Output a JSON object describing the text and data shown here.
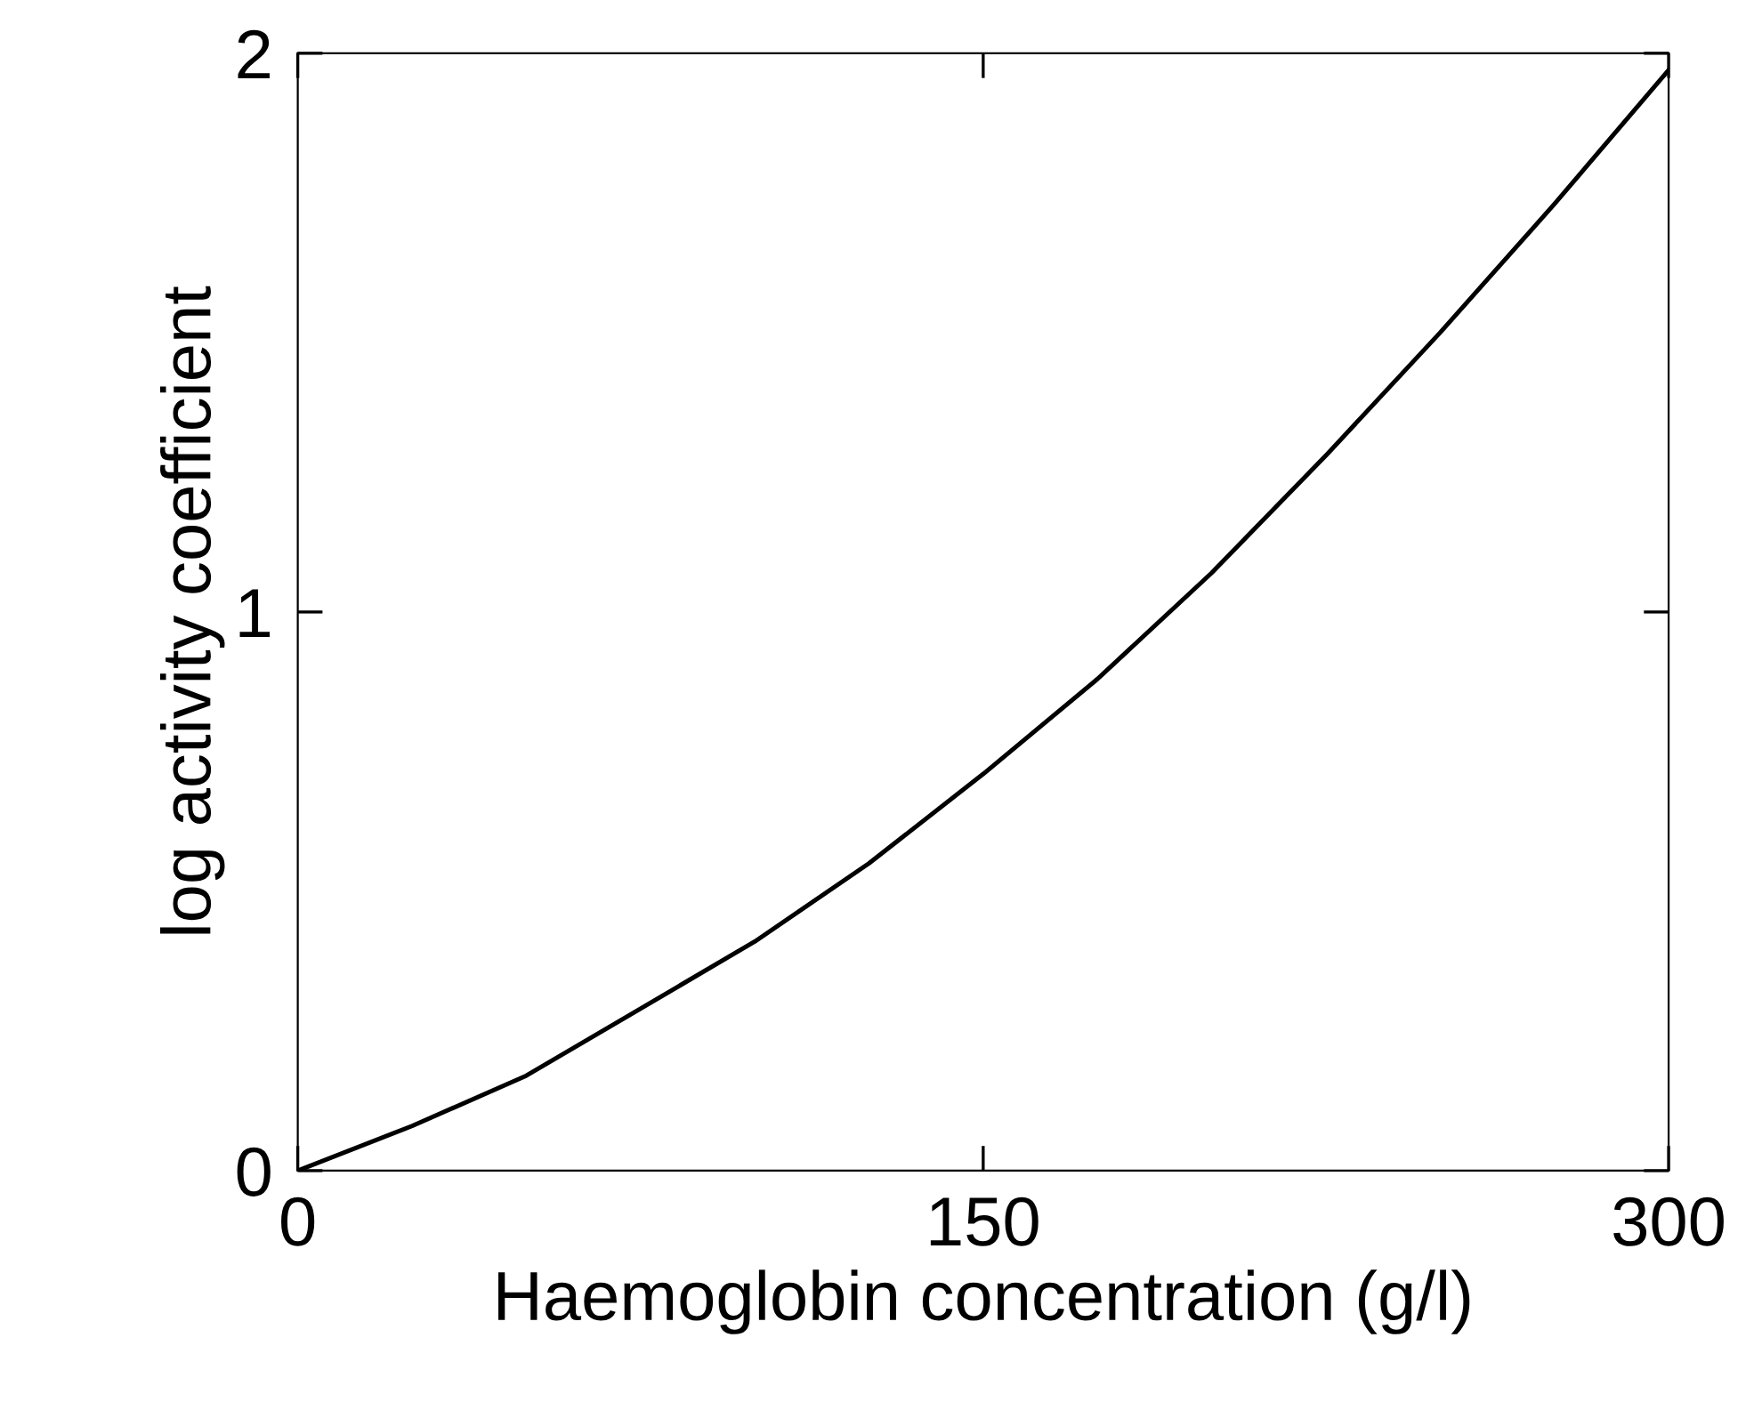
{
  "chart_data": {
    "type": "line",
    "xlabel": "Haemoglobin concentration (g/l)",
    "ylabel": "log activity coefficient",
    "x": [
      0,
      25,
      50,
      75,
      100,
      125,
      150,
      175,
      200,
      225,
      250,
      275,
      300
    ],
    "series": [
      {
        "color": "#000000",
        "values": [
          0,
          0.08,
          0.17,
          0.29,
          0.41,
          0.55,
          0.71,
          0.88,
          1.07,
          1.28,
          1.5,
          1.73,
          1.97
        ]
      }
    ],
    "xlim": [
      0,
      300
    ],
    "ylim": [
      0,
      2
    ],
    "xticks": [
      0,
      150,
      300
    ],
    "yticks": [
      0,
      1,
      2
    ],
    "grid": false,
    "legend": false,
    "marker": "none",
    "line_style": "solid"
  }
}
